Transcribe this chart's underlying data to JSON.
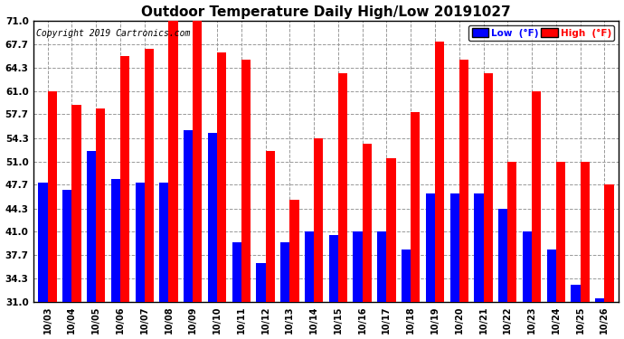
{
  "title": "Outdoor Temperature Daily High/Low 20191027",
  "copyright": "Copyright 2019 Cartronics.com",
  "legend_low": "Low  (°F)",
  "legend_high": "High  (°F)",
  "dates": [
    "10/03",
    "10/04",
    "10/05",
    "10/06",
    "10/07",
    "10/08",
    "10/09",
    "10/10",
    "10/11",
    "10/12",
    "10/13",
    "10/14",
    "10/15",
    "10/16",
    "10/17",
    "10/18",
    "10/19",
    "10/20",
    "10/21",
    "10/22",
    "10/23",
    "10/24",
    "10/25",
    "10/26"
  ],
  "highs": [
    61.0,
    59.0,
    58.5,
    66.0,
    67.0,
    71.0,
    71.0,
    66.5,
    65.5,
    52.5,
    45.5,
    54.3,
    63.5,
    53.5,
    51.5,
    58.0,
    68.0,
    65.5,
    63.5,
    51.0,
    61.0,
    51.0,
    51.0,
    47.7
  ],
  "lows": [
    48.0,
    47.0,
    52.5,
    48.5,
    48.0,
    48.0,
    55.5,
    55.0,
    39.5,
    36.5,
    39.5,
    41.0,
    40.5,
    41.0,
    41.0,
    38.5,
    46.5,
    46.5,
    46.5,
    44.3,
    41.0,
    38.5,
    33.5,
    31.5
  ],
  "ymin": 31.0,
  "ymax": 71.0,
  "yticks": [
    31.0,
    34.3,
    37.7,
    41.0,
    44.3,
    47.7,
    51.0,
    54.3,
    57.7,
    61.0,
    64.3,
    67.7,
    71.0
  ],
  "bar_width": 0.38,
  "color_low": "#0000FF",
  "color_high": "#FF0000",
  "bg_color": "#FFFFFF",
  "grid_color": "#999999",
  "title_fontsize": 11,
  "copyright_fontsize": 7,
  "tick_fontsize": 7,
  "ytick_fontsize": 7.5
}
